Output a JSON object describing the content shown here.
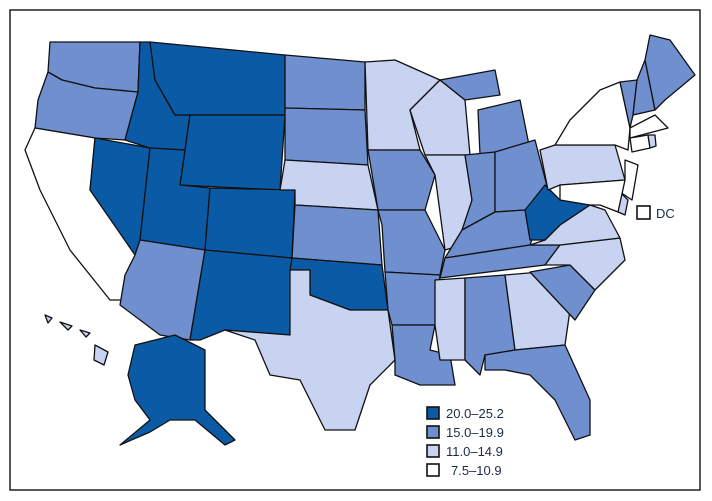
{
  "legend": {
    "items": [
      {
        "label": "20.0–25.2",
        "color": "#0b5aa6"
      },
      {
        "label": "15.0–19.9",
        "color": "#6f8fcf"
      },
      {
        "label": "11.0–14.9",
        "color": "#c7d3f0"
      },
      {
        "label": "7.5–10.9",
        "color": "#ffffff"
      }
    ]
  },
  "dc": {
    "label": "DC",
    "category": 3
  },
  "states": {
    "WA": 1,
    "OR": 1,
    "CA": 3,
    "NV": 0,
    "ID": 0,
    "MT": 0,
    "WY": 0,
    "UT": 0,
    "CO": 0,
    "AZ": 1,
    "NM": 0,
    "ND": 1,
    "SD": 1,
    "NE": 2,
    "KS": 1,
    "OK": 0,
    "TX": 2,
    "MN": 2,
    "IA": 1,
    "MO": 1,
    "AR": 1,
    "LA": 1,
    "WI": 2,
    "IL": 2,
    "MI": 1,
    "IN": 1,
    "OH": 1,
    "KY": 1,
    "TN": 1,
    "MS": 2,
    "AL": 1,
    "GA": 2,
    "FL": 1,
    "SC": 1,
    "NC": 2,
    "VA": 2,
    "WV": 0,
    "PA": 2,
    "NY": 3,
    "VT": 1,
    "NH": 1,
    "ME": 1,
    "MA": 3,
    "CT": 3,
    "RI": 2,
    "NJ": 3,
    "DE": 2,
    "MD": 3,
    "AK": 0,
    "HI": 2
  }
}
